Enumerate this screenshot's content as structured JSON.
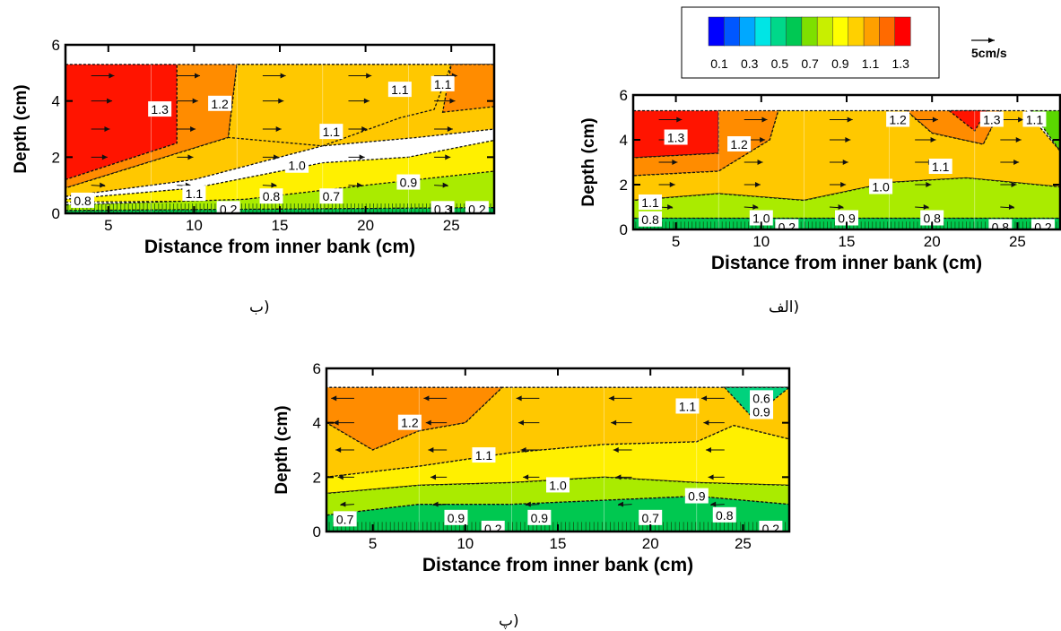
{
  "legend": {
    "tick_labels": [
      "0.1",
      "0.3",
      "0.5",
      "0.7",
      "0.9",
      "1.1",
      "1.3"
    ],
    "colors": [
      "#0000ff",
      "#0057ff",
      "#00a8ff",
      "#00e5e5",
      "#00d88a",
      "#00c853",
      "#7ee000",
      "#c8ef00",
      "#ffff00",
      "#ffd000",
      "#ffa000",
      "#ff6a00",
      "#ff0000"
    ],
    "vector_reference_label": "5cm/s"
  },
  "chart_data": [
    {
      "id": "alef",
      "type": "heatmap",
      "caption": "الف)",
      "xlabel": "Distance from inner bank (cm)",
      "ylabel": "Depth (cm)",
      "xlim": [
        2.5,
        27.5
      ],
      "ylim": [
        0,
        6
      ],
      "xticks": [
        "5",
        "10",
        "15",
        "20",
        "25"
      ],
      "yticks": [
        "0",
        "2",
        "4",
        "6"
      ],
      "regions": [
        {
          "level": 1.3,
          "points": [
            [
              2.5,
              3.2
            ],
            [
              7.5,
              3.4
            ],
            [
              7.5,
              5.3
            ],
            [
              2.5,
              5.3
            ]
          ]
        },
        {
          "level": 1.2,
          "points": [
            [
              2.5,
              2.4
            ],
            [
              7.5,
              2.6
            ],
            [
              10.5,
              4.0
            ],
            [
              11,
              5.3
            ],
            [
              7.5,
              5.3
            ],
            [
              7.5,
              3.4
            ],
            [
              2.5,
              3.2
            ]
          ]
        },
        {
          "level": 1.2,
          "points": [
            [
              18.5,
              5.3
            ],
            [
              20,
              4.3
            ],
            [
              23,
              3.8
            ],
            [
              24,
              5.3
            ]
          ]
        },
        {
          "level": 1.3,
          "points": [
            [
              21,
              5.3
            ],
            [
              22.5,
              4.4
            ],
            [
              23.2,
              5.3
            ]
          ]
        },
        {
          "level": 1.1,
          "points": [
            [
              2.5,
              1.3
            ],
            [
              7.5,
              1.6
            ],
            [
              12.5,
              1.3
            ],
            [
              17.5,
              2.1
            ],
            [
              22,
              2.3
            ],
            [
              27.5,
              1.9
            ],
            [
              27.5,
              3.5
            ],
            [
              25.5,
              5.3
            ],
            [
              24,
              5.3
            ],
            [
              23,
              3.8
            ],
            [
              20,
              4.3
            ],
            [
              18.5,
              5.3
            ],
            [
              11,
              5.3
            ],
            [
              10.5,
              4.0
            ],
            [
              7.5,
              2.6
            ],
            [
              2.5,
              2.4
            ]
          ]
        },
        {
          "level": 0.9,
          "points": [
            [
              2.5,
              0.5
            ],
            [
              27.5,
              0.5
            ],
            [
              27.5,
              1.9
            ],
            [
              22,
              2.3
            ],
            [
              17.5,
              2.1
            ],
            [
              12.5,
              1.3
            ],
            [
              7.5,
              1.6
            ],
            [
              2.5,
              1.3
            ]
          ]
        },
        {
          "level": 0.7,
          "points": [
            [
              2.5,
              0
            ],
            [
              27.5,
              0
            ],
            [
              27.5,
              0.5
            ],
            [
              2.5,
              0.5
            ]
          ]
        },
        {
          "level": 0.8,
          "points": [
            [
              25.8,
              5.3
            ],
            [
              27.5,
              3.5
            ],
            [
              27.5,
              5.3
            ]
          ]
        }
      ],
      "labels": [
        {
          "text": "1.3",
          "x": 5,
          "y": 4.1
        },
        {
          "text": "1.2",
          "x": 8.7,
          "y": 3.8
        },
        {
          "text": "1.2",
          "x": 18,
          "y": 4.9
        },
        {
          "text": "1.3",
          "x": 23.5,
          "y": 4.9
        },
        {
          "text": "1.1",
          "x": 26,
          "y": 4.9
        },
        {
          "text": "1.1",
          "x": 20.5,
          "y": 2.8
        },
        {
          "text": "1.0",
          "x": 17,
          "y": 1.9
        },
        {
          "text": "1.1",
          "x": 3.5,
          "y": 1.2
        },
        {
          "text": "0.8",
          "x": 3.5,
          "y": 0.45
        },
        {
          "text": "1.0",
          "x": 10,
          "y": 0.5
        },
        {
          "text": "0.9",
          "x": 15,
          "y": 0.5
        },
        {
          "text": "0.8",
          "x": 20,
          "y": 0.5
        },
        {
          "text": "0.2",
          "x": 11.5,
          "y": 0.1
        },
        {
          "text": "0.8",
          "x": 24,
          "y": 0.1
        },
        {
          "text": "0.2",
          "x": 26.5,
          "y": 0.1
        }
      ],
      "arrow_dir": 1
    },
    {
      "id": "be",
      "type": "heatmap",
      "caption": "ب)",
      "xlabel": "Distance from inner bank (cm)",
      "ylabel": "Depth (cm)",
      "xlim": [
        2.5,
        27.5
      ],
      "ylim": [
        0,
        6
      ],
      "xticks": [
        "5",
        "10",
        "15",
        "20",
        "25"
      ],
      "yticks": [
        "0",
        "2",
        "4",
        "6"
      ],
      "regions": [
        {
          "level": 1.3,
          "points": [
            [
              2.5,
              1.2
            ],
            [
              9,
              2.5
            ],
            [
              9,
              5.3
            ],
            [
              2.5,
              5.3
            ]
          ]
        },
        {
          "level": 1.2,
          "points": [
            [
              2.5,
              0.9
            ],
            [
              12,
              2.7
            ],
            [
              12.5,
              5.3
            ],
            [
              9,
              5.3
            ],
            [
              9,
              2.5
            ],
            [
              2.5,
              1.2
            ]
          ]
        },
        {
          "level": 1.1,
          "points": [
            [
              2.5,
              0.6
            ],
            [
              10,
              1.2
            ],
            [
              17.5,
              2.4
            ],
            [
              23,
              2.7
            ],
            [
              27.5,
              3.0
            ],
            [
              27.5,
              5.3
            ],
            [
              12.5,
              5.3
            ],
            [
              12,
              2.7
            ],
            [
              2.5,
              0.9
            ]
          ]
        },
        {
          "level": 1.0,
          "points": [
            [
              2.5,
              0.4
            ],
            [
              27.5,
              0.5
            ],
            [
              27.5,
              2.6
            ],
            [
              22.5,
              2.0
            ],
            [
              17.5,
              1.8
            ],
            [
              10,
              0.9
            ],
            [
              2.5,
              0.5
            ]
          ]
        },
        {
          "level": 0.9,
          "points": [
            [
              2.5,
              0.1
            ],
            [
              27.5,
              0.2
            ],
            [
              27.5,
              1.5
            ],
            [
              20,
              1.0
            ],
            [
              13,
              0.5
            ],
            [
              2.5,
              0.3
            ]
          ]
        },
        {
          "level": 0.7,
          "points": [
            [
              2.5,
              0
            ],
            [
              27.5,
              0
            ],
            [
              27.5,
              0.2
            ],
            [
              2.5,
              0.1
            ]
          ]
        },
        {
          "level": 1.1,
          "points": [
            [
              17.5,
              2.4
            ],
            [
              22,
              3.4
            ],
            [
              24,
              3.7
            ],
            [
              25,
              5.3
            ],
            [
              12.5,
              5.3
            ],
            [
              12,
              2.7
            ]
          ]
        },
        {
          "level": 1.2,
          "points": [
            [
              24.5,
              3.6
            ],
            [
              27.5,
              3.8
            ],
            [
              27.5,
              5.3
            ],
            [
              25,
              5.3
            ]
          ]
        }
      ],
      "labels": [
        {
          "text": "1.3",
          "x": 8,
          "y": 3.7
        },
        {
          "text": "1.2",
          "x": 11.5,
          "y": 3.9
        },
        {
          "text": "1.1",
          "x": 22,
          "y": 4.4
        },
        {
          "text": "1.1",
          "x": 24.5,
          "y": 4.6
        },
        {
          "text": "1.1",
          "x": 18,
          "y": 2.9
        },
        {
          "text": "1.0",
          "x": 16,
          "y": 1.7
        },
        {
          "text": "0.9",
          "x": 22.5,
          "y": 1.1
        },
        {
          "text": "1.1",
          "x": 10,
          "y": 0.7
        },
        {
          "text": "0.8",
          "x": 14.5,
          "y": 0.6
        },
        {
          "text": "0.7",
          "x": 18,
          "y": 0.6
        },
        {
          "text": "0.8",
          "x": 3.5,
          "y": 0.45
        },
        {
          "text": "0.2",
          "x": 12,
          "y": 0.15
        },
        {
          "text": "0.3",
          "x": 24.5,
          "y": 0.15
        },
        {
          "text": "0.2",
          "x": 26.5,
          "y": 0.15
        }
      ],
      "arrow_dir": 1
    },
    {
      "id": "pe",
      "type": "heatmap",
      "caption": "پ)",
      "xlabel": "Distance from inner bank (cm)",
      "ylabel": "Depth (cm)",
      "xlim": [
        2.5,
        27.5
      ],
      "ylim": [
        0,
        6
      ],
      "xticks": [
        "5",
        "10",
        "15",
        "20",
        "25"
      ],
      "yticks": [
        "0",
        "2",
        "4",
        "6"
      ],
      "regions": [
        {
          "level": 1.2,
          "points": [
            [
              2.5,
              4.0
            ],
            [
              5,
              3.0
            ],
            [
              7.5,
              3.7
            ],
            [
              10,
              4.0
            ],
            [
              12,
              5.3
            ],
            [
              2.5,
              5.3
            ]
          ]
        },
        {
          "level": 1.1,
          "points": [
            [
              2.5,
              2.0
            ],
            [
              7.5,
              2.4
            ],
            [
              12.5,
              2.9
            ],
            [
              17.5,
              3.2
            ],
            [
              22.5,
              3.3
            ],
            [
              24.5,
              3.9
            ],
            [
              27.5,
              3.4
            ],
            [
              27.5,
              5.3
            ],
            [
              12,
              5.3
            ],
            [
              10,
              4.0
            ],
            [
              7.5,
              3.7
            ],
            [
              5,
              3.0
            ],
            [
              2.5,
              4.0
            ]
          ]
        },
        {
          "level": 1.0,
          "points": [
            [
              2.5,
              1.4
            ],
            [
              7.5,
              1.7
            ],
            [
              12.5,
              1.8
            ],
            [
              17.5,
              2.0
            ],
            [
              22.5,
              1.8
            ],
            [
              27.5,
              1.7
            ],
            [
              27.5,
              3.4
            ],
            [
              24.5,
              3.9
            ],
            [
              22.5,
              3.3
            ],
            [
              17.5,
              3.2
            ],
            [
              12.5,
              2.9
            ],
            [
              7.5,
              2.4
            ],
            [
              2.5,
              2.0
            ]
          ]
        },
        {
          "level": 0.9,
          "points": [
            [
              2.5,
              0.6
            ],
            [
              7.5,
              1.0
            ],
            [
              12.5,
              1.0
            ],
            [
              22.5,
              1.3
            ],
            [
              27.5,
              1.0
            ],
            [
              27.5,
              1.7
            ],
            [
              22.5,
              1.8
            ],
            [
              17.5,
              2.0
            ],
            [
              12.5,
              1.8
            ],
            [
              7.5,
              1.7
            ],
            [
              2.5,
              1.4
            ]
          ]
        },
        {
          "level": 0.7,
          "points": [
            [
              2.5,
              0
            ],
            [
              27.5,
              0
            ],
            [
              27.5,
              1.0
            ],
            [
              22.5,
              1.3
            ],
            [
              12.5,
              1.0
            ],
            [
              7.5,
              1.0
            ],
            [
              2.5,
              0.6
            ]
          ]
        },
        {
          "level": 0.6,
          "points": [
            [
              24,
              5.3
            ],
            [
              25.5,
              4.2
            ],
            [
              27.5,
              5.3
            ]
          ]
        }
      ],
      "labels": [
        {
          "text": "1.2",
          "x": 7,
          "y": 4.0
        },
        {
          "text": "1.1",
          "x": 22,
          "y": 4.6
        },
        {
          "text": "0.6",
          "x": 26,
          "y": 4.9
        },
        {
          "text": "0.9",
          "x": 26,
          "y": 4.4
        },
        {
          "text": "1.1",
          "x": 11,
          "y": 2.8
        },
        {
          "text": "1.0",
          "x": 15,
          "y": 1.7
        },
        {
          "text": "0.9",
          "x": 22.5,
          "y": 1.3
        },
        {
          "text": "0.8",
          "x": 24,
          "y": 0.6
        },
        {
          "text": "0.7",
          "x": 3.5,
          "y": 0.45
        },
        {
          "text": "0.9",
          "x": 9.5,
          "y": 0.5
        },
        {
          "text": "0.2",
          "x": 11.5,
          "y": 0.1
        },
        {
          "text": "0.9",
          "x": 14,
          "y": 0.5
        },
        {
          "text": "0.7",
          "x": 20,
          "y": 0.5
        },
        {
          "text": "0.2",
          "x": 26.5,
          "y": 0.1
        }
      ],
      "arrow_dir": -1
    }
  ]
}
